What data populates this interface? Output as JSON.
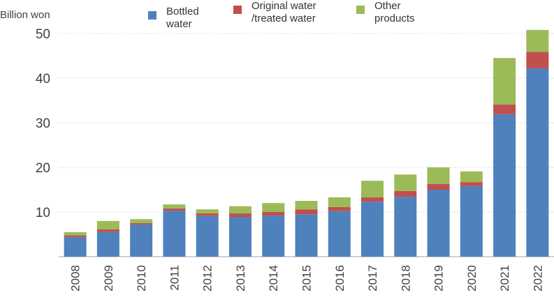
{
  "chart_data": {
    "type": "stacked_bar",
    "y_label": "Billion won",
    "categories": [
      "2008",
      "2009",
      "2010",
      "2011",
      "2012",
      "2013",
      "2014",
      "2015",
      "2016",
      "2017",
      "2018",
      "2019",
      "2020",
      "2021",
      "2022"
    ],
    "series": [
      {
        "name": "Bottled\nwater",
        "color": "#4f81bd",
        "values": [
          4.4,
          5.5,
          7.2,
          10.3,
          9.1,
          8.9,
          9.2,
          9.5,
          10.2,
          12.3,
          13.4,
          15.0,
          15.8,
          31.9,
          42.2
        ]
      },
      {
        "name": "Original water\n/treated water",
        "color": "#c0504d",
        "values": [
          0.4,
          0.6,
          0.3,
          0.5,
          0.6,
          0.8,
          0.8,
          1.1,
          0.9,
          1.0,
          1.3,
          1.3,
          0.9,
          2.2,
          3.7
        ]
      },
      {
        "name": "Other\nproducts",
        "color": "#9bbb59",
        "values": [
          0.7,
          1.9,
          0.9,
          0.9,
          0.9,
          1.6,
          2.0,
          1.9,
          2.2,
          3.7,
          3.7,
          3.7,
          2.4,
          10.4,
          4.9
        ]
      }
    ],
    "ylim": [
      0,
      50
    ],
    "yticks": [
      10,
      20,
      30,
      40,
      50
    ],
    "grid": true
  }
}
